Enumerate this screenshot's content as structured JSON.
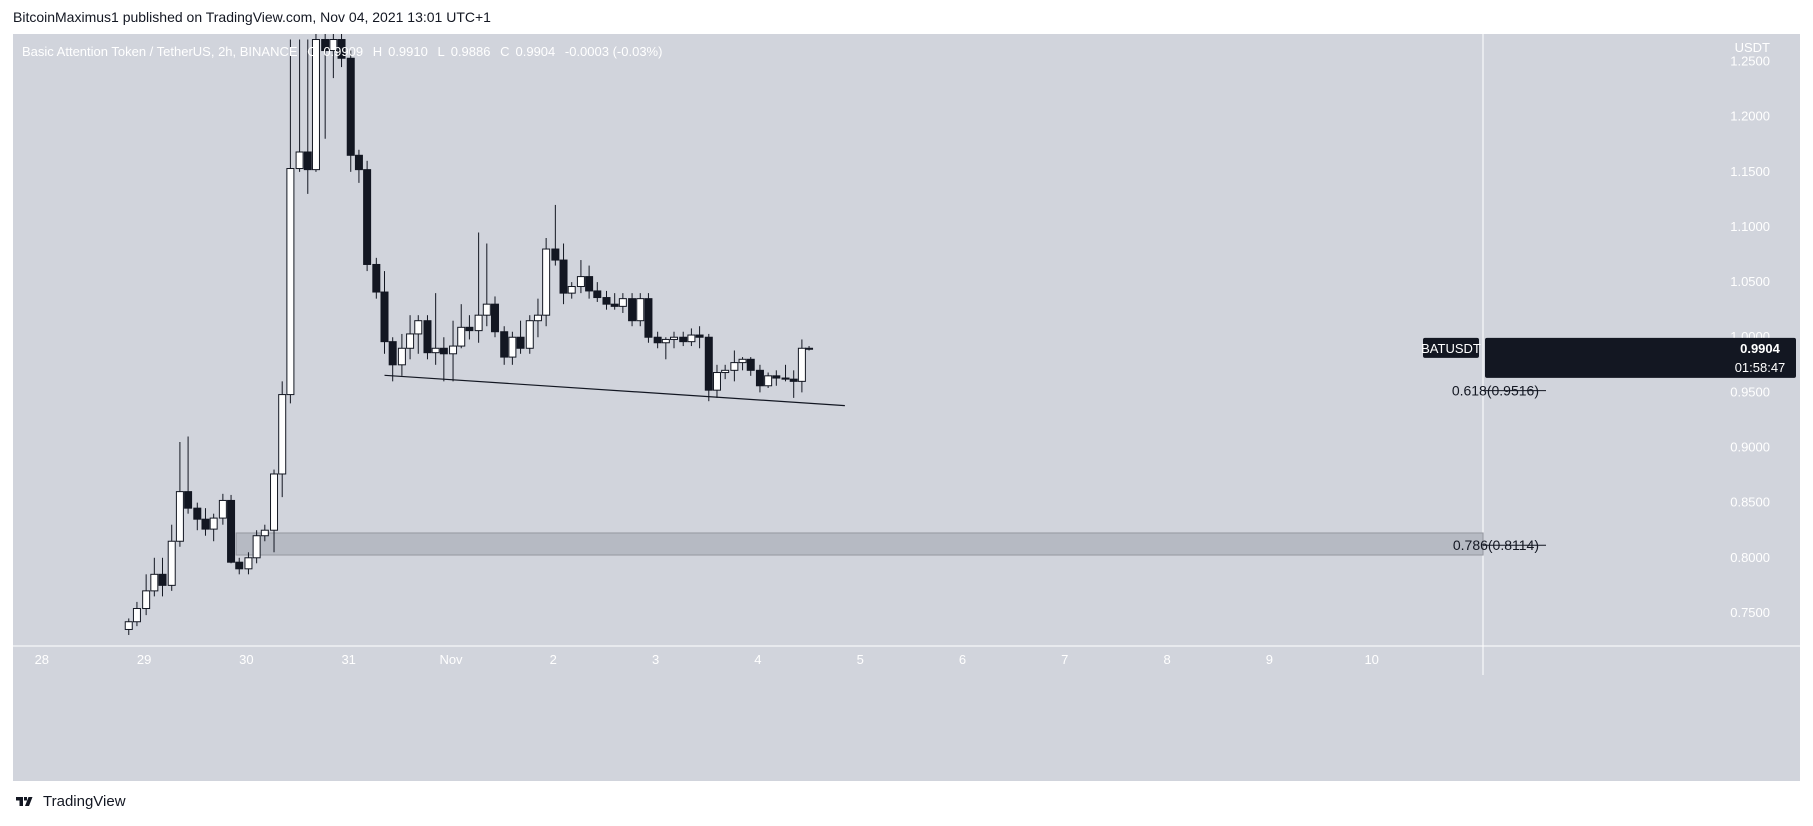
{
  "header": {
    "published": "BitcoinMaximus1 published on TradingView.com, Nov 04, 2021 13:01 UTC+1"
  },
  "footer": {
    "brand": "TradingView"
  },
  "legend": {
    "symbol": "Basic Attention Token / TetherUS, 2h, BINANCE",
    "o": "0.9909",
    "h": "0.9910",
    "l": "0.9886",
    "c": "0.9904",
    "change": "-0.0003 (-0.03%)"
  },
  "colors": {
    "background": "#d1d4dc",
    "bull_body": "#ffffff",
    "bear_body": "#131722",
    "wick": "#131722",
    "text_axis": "#ffffff",
    "zone_fill": "#b2b5be",
    "label_bg": "#131722"
  },
  "price_label": {
    "symbol": "BATUSDT",
    "price": "0.9904",
    "countdown": "01:58:47"
  },
  "chart_data": {
    "type": "candlestick",
    "title": "Basic Attention Token / TetherUS, 2h, BINANCE",
    "y_axis_title": "USDT",
    "ylim": [
      0.72,
      1.275
    ],
    "y_ticks": [
      0.75,
      0.8,
      0.85,
      0.9,
      0.95,
      1.0,
      1.05,
      1.1,
      1.15,
      1.2,
      1.25
    ],
    "x_ticks": [
      "28",
      "29",
      "30",
      "31",
      "Nov",
      "2",
      "3",
      "4",
      "5",
      "6",
      "7",
      "8",
      "9",
      "10"
    ],
    "x_tick_day_offsets": [
      -4,
      -3,
      -2,
      -1,
      0,
      1,
      2,
      3,
      4,
      5,
      6,
      7,
      8,
      9
    ],
    "candles": [
      {
        "t": -3.15,
        "o": 0.735,
        "h": 0.745,
        "l": 0.73,
        "c": 0.742
      },
      {
        "t": -3.07,
        "o": 0.742,
        "h": 0.76,
        "l": 0.738,
        "c": 0.754
      },
      {
        "t": -2.98,
        "o": 0.754,
        "h": 0.785,
        "l": 0.748,
        "c": 0.77
      },
      {
        "t": -2.9,
        "o": 0.77,
        "h": 0.8,
        "l": 0.765,
        "c": 0.785
      },
      {
        "t": -2.82,
        "o": 0.785,
        "h": 0.8,
        "l": 0.765,
        "c": 0.775
      },
      {
        "t": -2.73,
        "o": 0.775,
        "h": 0.83,
        "l": 0.77,
        "c": 0.815
      },
      {
        "t": -2.65,
        "o": 0.815,
        "h": 0.905,
        "l": 0.81,
        "c": 0.86
      },
      {
        "t": -2.57,
        "o": 0.86,
        "h": 0.91,
        "l": 0.84,
        "c": 0.845
      },
      {
        "t": -2.48,
        "o": 0.845,
        "h": 0.85,
        "l": 0.825,
        "c": 0.835
      },
      {
        "t": -2.4,
        "o": 0.835,
        "h": 0.845,
        "l": 0.82,
        "c": 0.826
      },
      {
        "t": -2.32,
        "o": 0.826,
        "h": 0.84,
        "l": 0.815,
        "c": 0.836
      },
      {
        "t": -2.23,
        "o": 0.836,
        "h": 0.858,
        "l": 0.83,
        "c": 0.852
      },
      {
        "t": -2.15,
        "o": 0.852,
        "h": 0.857,
        "l": 0.795,
        "c": 0.796
      },
      {
        "t": -2.07,
        "o": 0.796,
        "h": 0.8,
        "l": 0.785,
        "c": 0.79
      },
      {
        "t": -1.98,
        "o": 0.79,
        "h": 0.805,
        "l": 0.785,
        "c": 0.8
      },
      {
        "t": -1.9,
        "o": 0.8,
        "h": 0.825,
        "l": 0.795,
        "c": 0.82
      },
      {
        "t": -1.82,
        "o": 0.82,
        "h": 0.83,
        "l": 0.815,
        "c": 0.825
      },
      {
        "t": -1.73,
        "o": 0.825,
        "h": 0.88,
        "l": 0.805,
        "c": 0.876
      },
      {
        "t": -1.65,
        "o": 0.876,
        "h": 0.96,
        "l": 0.855,
        "c": 0.948
      },
      {
        "t": -1.57,
        "o": 0.948,
        "h": 1.27,
        "l": 0.94,
        "c": 1.153
      },
      {
        "t": -1.48,
        "o": 1.153,
        "h": 1.27,
        "l": 1.15,
        "c": 1.168
      },
      {
        "t": -1.4,
        "o": 1.168,
        "h": 1.27,
        "l": 1.13,
        "c": 1.152
      },
      {
        "t": -1.32,
        "o": 1.152,
        "h": 1.275,
        "l": 1.15,
        "c": 1.27
      },
      {
        "t": -1.23,
        "o": 1.27,
        "h": 1.275,
        "l": 1.18,
        "c": 1.26
      },
      {
        "t": -1.15,
        "o": 1.26,
        "h": 1.275,
        "l": 1.235,
        "c": 1.27
      },
      {
        "t": -1.07,
        "o": 1.27,
        "h": 1.275,
        "l": 1.245,
        "c": 1.253
      },
      {
        "t": -0.98,
        "o": 1.253,
        "h": 1.26,
        "l": 1.15,
        "c": 1.165
      },
      {
        "t": -0.9,
        "o": 1.165,
        "h": 1.17,
        "l": 1.14,
        "c": 1.152
      },
      {
        "t": -0.82,
        "o": 1.152,
        "h": 1.16,
        "l": 1.06,
        "c": 1.066
      },
      {
        "t": -0.73,
        "o": 1.066,
        "h": 1.072,
        "l": 1.035,
        "c": 1.041
      },
      {
        "t": -0.65,
        "o": 1.041,
        "h": 1.06,
        "l": 0.985,
        "c": 0.996
      },
      {
        "t": -0.57,
        "o": 0.996,
        "h": 1.0,
        "l": 0.96,
        "c": 0.975
      },
      {
        "t": -0.48,
        "o": 0.975,
        "h": 1.003,
        "l": 0.965,
        "c": 0.99
      },
      {
        "t": -0.4,
        "o": 0.99,
        "h": 1.02,
        "l": 0.98,
        "c": 1.003
      },
      {
        "t": -0.32,
        "o": 1.003,
        "h": 1.02,
        "l": 0.985,
        "c": 1.015
      },
      {
        "t": -0.23,
        "o": 1.015,
        "h": 1.02,
        "l": 0.98,
        "c": 0.986
      },
      {
        "t": -0.15,
        "o": 0.986,
        "h": 1.04,
        "l": 0.975,
        "c": 0.99
      },
      {
        "t": -0.07,
        "o": 0.99,
        "h": 1.0,
        "l": 0.96,
        "c": 0.985
      },
      {
        "t": 0.02,
        "o": 0.985,
        "h": 1.015,
        "l": 0.96,
        "c": 0.992
      },
      {
        "t": 0.1,
        "o": 0.992,
        "h": 1.03,
        "l": 0.99,
        "c": 1.009
      },
      {
        "t": 0.18,
        "o": 1.009,
        "h": 1.02,
        "l": 0.998,
        "c": 1.006
      },
      {
        "t": 0.27,
        "o": 1.006,
        "h": 1.095,
        "l": 0.995,
        "c": 1.02
      },
      {
        "t": 0.35,
        "o": 1.02,
        "h": 1.085,
        "l": 1.01,
        "c": 1.03
      },
      {
        "t": 0.43,
        "o": 1.03,
        "h": 1.037,
        "l": 1.0,
        "c": 1.005
      },
      {
        "t": 0.52,
        "o": 1.005,
        "h": 1.01,
        "l": 0.975,
        "c": 0.982
      },
      {
        "t": 0.6,
        "o": 0.982,
        "h": 1.005,
        "l": 0.975,
        "c": 1.0
      },
      {
        "t": 0.68,
        "o": 1.0,
        "h": 1.015,
        "l": 0.985,
        "c": 0.99
      },
      {
        "t": 0.77,
        "o": 0.99,
        "h": 1.02,
        "l": 0.985,
        "c": 1.015
      },
      {
        "t": 0.85,
        "o": 1.015,
        "h": 1.035,
        "l": 1.0,
        "c": 1.02
      },
      {
        "t": 0.93,
        "o": 1.02,
        "h": 1.09,
        "l": 1.01,
        "c": 1.08
      },
      {
        "t": 1.02,
        "o": 1.08,
        "h": 1.12,
        "l": 1.065,
        "c": 1.07
      },
      {
        "t": 1.1,
        "o": 1.07,
        "h": 1.085,
        "l": 1.03,
        "c": 1.04
      },
      {
        "t": 1.18,
        "o": 1.04,
        "h": 1.05,
        "l": 1.035,
        "c": 1.046
      },
      {
        "t": 1.27,
        "o": 1.046,
        "h": 1.07,
        "l": 1.04,
        "c": 1.055
      },
      {
        "t": 1.35,
        "o": 1.055,
        "h": 1.065,
        "l": 1.035,
        "c": 1.042
      },
      {
        "t": 1.43,
        "o": 1.042,
        "h": 1.05,
        "l": 1.032,
        "c": 1.036
      },
      {
        "t": 1.52,
        "o": 1.036,
        "h": 1.042,
        "l": 1.025,
        "c": 1.03
      },
      {
        "t": 1.6,
        "o": 1.03,
        "h": 1.04,
        "l": 1.025,
        "c": 1.028
      },
      {
        "t": 1.68,
        "o": 1.028,
        "h": 1.04,
        "l": 1.022,
        "c": 1.035
      },
      {
        "t": 1.77,
        "o": 1.035,
        "h": 1.04,
        "l": 1.01,
        "c": 1.015
      },
      {
        "t": 1.85,
        "o": 1.015,
        "h": 1.04,
        "l": 1.01,
        "c": 1.035
      },
      {
        "t": 1.93,
        "o": 1.035,
        "h": 1.04,
        "l": 0.995,
        "c": 1.0
      },
      {
        "t": 2.02,
        "o": 1.0,
        "h": 1.005,
        "l": 0.99,
        "c": 0.995
      },
      {
        "t": 2.1,
        "o": 0.995,
        "h": 1.0,
        "l": 0.98,
        "c": 0.998
      },
      {
        "t": 2.18,
        "o": 0.998,
        "h": 1.005,
        "l": 0.99,
        "c": 1.0
      },
      {
        "t": 2.27,
        "o": 1.0,
        "h": 1.005,
        "l": 0.992,
        "c": 0.996
      },
      {
        "t": 2.35,
        "o": 0.996,
        "h": 1.008,
        "l": 0.992,
        "c": 1.002
      },
      {
        "t": 2.43,
        "o": 1.002,
        "h": 1.01,
        "l": 0.99,
        "c": 1.0
      },
      {
        "t": 2.52,
        "o": 1.0,
        "h": 1.003,
        "l": 0.942,
        "c": 0.952
      },
      {
        "t": 2.6,
        "o": 0.952,
        "h": 0.975,
        "l": 0.945,
        "c": 0.968
      },
      {
        "t": 2.68,
        "o": 0.968,
        "h": 0.975,
        "l": 0.962,
        "c": 0.97
      },
      {
        "t": 2.77,
        "o": 0.97,
        "h": 0.988,
        "l": 0.96,
        "c": 0.977
      },
      {
        "t": 2.85,
        "o": 0.977,
        "h": 0.982,
        "l": 0.97,
        "c": 0.98
      },
      {
        "t": 2.93,
        "o": 0.98,
        "h": 0.982,
        "l": 0.965,
        "c": 0.97
      },
      {
        "t": 3.02,
        "o": 0.97,
        "h": 0.975,
        "l": 0.95,
        "c": 0.956
      },
      {
        "t": 3.1,
        "o": 0.956,
        "h": 0.968,
        "l": 0.954,
        "c": 0.965
      },
      {
        "t": 3.18,
        "o": 0.965,
        "h": 0.97,
        "l": 0.956,
        "c": 0.963
      },
      {
        "t": 3.27,
        "o": 0.963,
        "h": 0.975,
        "l": 0.96,
        "c": 0.962
      },
      {
        "t": 3.35,
        "o": 0.962,
        "h": 0.97,
        "l": 0.945,
        "c": 0.96
      },
      {
        "t": 3.43,
        "o": 0.96,
        "h": 0.998,
        "l": 0.95,
        "c": 0.99
      },
      {
        "t": 3.5,
        "o": 0.99,
        "h": 0.992,
        "l": 0.988,
        "c": 0.99
      }
    ],
    "trendline": {
      "from": {
        "t": -0.65,
        "price": 0.9655
      },
      "to": {
        "t": 3.85,
        "price": 0.938
      }
    },
    "fib_levels": [
      {
        "label": "0.618(0.9516)",
        "price": 0.9516
      },
      {
        "label": "0.786(0.8114)",
        "price": 0.8114
      }
    ],
    "support_zone": {
      "from_t": -2.1,
      "price_low": 0.8025,
      "price_high": 0.8225
    }
  }
}
